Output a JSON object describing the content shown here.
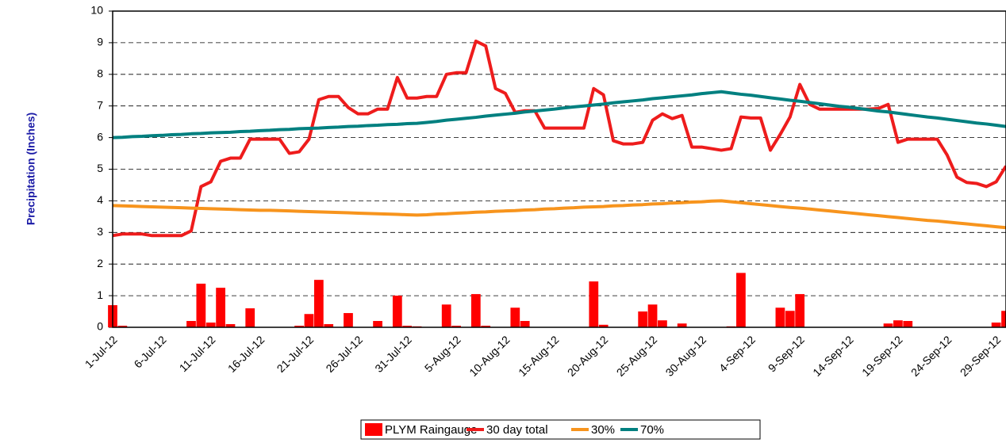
{
  "chart_data": {
    "type": "bar",
    "y_label": "Precipitation (Inches)",
    "categories": [
      "1-Jul-12",
      null,
      null,
      null,
      null,
      "6-Jul-12",
      null,
      null,
      null,
      null,
      "11-Jul-12",
      null,
      null,
      null,
      null,
      "16-Jul-12",
      null,
      null,
      null,
      null,
      "21-Jul-12",
      null,
      null,
      null,
      null,
      "26-Jul-12",
      null,
      null,
      null,
      null,
      "31-Jul-12",
      null,
      null,
      null,
      null,
      "5-Aug-12",
      null,
      null,
      null,
      null,
      "10-Aug-12",
      null,
      null,
      null,
      null,
      "15-Aug-12",
      null,
      null,
      null,
      null,
      "20-Aug-12",
      null,
      null,
      null,
      null,
      "25-Aug-12",
      null,
      null,
      null,
      null,
      "30-Aug-12",
      null,
      null,
      null,
      null,
      "4-Sep-12",
      null,
      null,
      null,
      null,
      "9-Sep-12",
      null,
      null,
      null,
      null,
      "14-Sep-12",
      null,
      null,
      null,
      null,
      "19-Sep-12",
      null,
      null,
      null,
      null,
      "24-Sep-12",
      null,
      null,
      null,
      null,
      "29-Sep-12",
      null
    ],
    "series": [
      {
        "name": "PLYM Raingauge",
        "type": "bar",
        "color": "#ff0000",
        "values": [
          0.7,
          0.05,
          0,
          0,
          0,
          0,
          0,
          0,
          0.2,
          1.38,
          0.15,
          1.25,
          0.1,
          0,
          0.6,
          0,
          0,
          0,
          0,
          0.05,
          0.42,
          1.5,
          0.1,
          0,
          0.45,
          0,
          0,
          0.2,
          0,
          1.0,
          0.05,
          0.03,
          0,
          0,
          0.72,
          0.05,
          0,
          1.05,
          0.05,
          0,
          0,
          0.62,
          0.2,
          0,
          0,
          0,
          0,
          0,
          0,
          1.45,
          0.08,
          0,
          0,
          0,
          0.5,
          0.72,
          0.22,
          0,
          0.12,
          0,
          0,
          0,
          0,
          0.03,
          1.72,
          0,
          0,
          0,
          0.62,
          0.52,
          1.05,
          0,
          0,
          0,
          0,
          0,
          0,
          0,
          0,
          0.12,
          0.22,
          0.2,
          0,
          0,
          0,
          0,
          0,
          0,
          0,
          0,
          0.15,
          0.52
        ]
      },
      {
        "name": "30 day total",
        "type": "line",
        "color": "#ee1c1c",
        "values": [
          2.9,
          2.95,
          2.95,
          2.95,
          2.9,
          2.9,
          2.9,
          2.9,
          3.05,
          4.45,
          4.6,
          5.25,
          5.35,
          5.35,
          5.95,
          5.95,
          5.95,
          5.95,
          5.5,
          5.55,
          5.95,
          7.2,
          7.3,
          7.3,
          6.95,
          6.75,
          6.75,
          6.9,
          6.9,
          7.9,
          7.25,
          7.25,
          7.3,
          7.3,
          8.0,
          8.05,
          8.05,
          9.05,
          8.9,
          7.55,
          7.4,
          6.8,
          6.85,
          6.85,
          6.3,
          6.3,
          6.3,
          6.3,
          6.3,
          7.55,
          7.35,
          5.9,
          5.8,
          5.8,
          5.85,
          6.55,
          6.75,
          6.6,
          6.7,
          5.7,
          5.7,
          5.65,
          5.6,
          5.65,
          6.65,
          6.62,
          6.62,
          5.6,
          6.1,
          6.65,
          7.68,
          7.05,
          6.9,
          6.9,
          6.9,
          6.9,
          6.9,
          6.9,
          6.92,
          7.05,
          5.85,
          5.95,
          5.95,
          5.95,
          5.95,
          5.45,
          4.75,
          4.58,
          4.55,
          4.45,
          4.6,
          5.1
        ]
      },
      {
        "name": "30%",
        "type": "line",
        "color": "#f7941d",
        "values": [
          3.85,
          3.84,
          3.83,
          3.82,
          3.81,
          3.8,
          3.79,
          3.78,
          3.77,
          3.76,
          3.75,
          3.74,
          3.73,
          3.72,
          3.71,
          3.7,
          3.7,
          3.69,
          3.68,
          3.67,
          3.66,
          3.65,
          3.64,
          3.63,
          3.62,
          3.61,
          3.6,
          3.59,
          3.58,
          3.57,
          3.56,
          3.55,
          3.56,
          3.58,
          3.59,
          3.61,
          3.62,
          3.64,
          3.65,
          3.67,
          3.68,
          3.69,
          3.71,
          3.72,
          3.74,
          3.75,
          3.77,
          3.78,
          3.8,
          3.81,
          3.82,
          3.84,
          3.85,
          3.87,
          3.88,
          3.9,
          3.91,
          3.93,
          3.94,
          3.96,
          3.97,
          3.99,
          4.0,
          3.97,
          3.94,
          3.91,
          3.88,
          3.85,
          3.82,
          3.79,
          3.77,
          3.74,
          3.71,
          3.68,
          3.65,
          3.62,
          3.59,
          3.56,
          3.53,
          3.5,
          3.47,
          3.44,
          3.41,
          3.38,
          3.36,
          3.33,
          3.3,
          3.27,
          3.24,
          3.21,
          3.18,
          3.15
        ]
      },
      {
        "name": "70%",
        "type": "line",
        "color": "#008080",
        "values": [
          6.0,
          6.01,
          6.03,
          6.04,
          6.06,
          6.07,
          6.09,
          6.1,
          6.12,
          6.13,
          6.15,
          6.16,
          6.17,
          6.19,
          6.2,
          6.22,
          6.23,
          6.25,
          6.26,
          6.28,
          6.29,
          6.3,
          6.32,
          6.33,
          6.35,
          6.36,
          6.38,
          6.39,
          6.41,
          6.42,
          6.44,
          6.45,
          6.48,
          6.51,
          6.55,
          6.58,
          6.61,
          6.64,
          6.68,
          6.71,
          6.74,
          6.77,
          6.81,
          6.84,
          6.87,
          6.9,
          6.94,
          6.97,
          7.0,
          7.03,
          7.06,
          7.1,
          7.13,
          7.16,
          7.19,
          7.23,
          7.26,
          7.29,
          7.32,
          7.35,
          7.39,
          7.42,
          7.45,
          7.41,
          7.37,
          7.34,
          7.3,
          7.26,
          7.22,
          7.18,
          7.15,
          7.11,
          7.07,
          7.03,
          6.99,
          6.96,
          6.92,
          6.88,
          6.84,
          6.81,
          6.77,
          6.73,
          6.69,
          6.65,
          6.62,
          6.58,
          6.54,
          6.5,
          6.46,
          6.43,
          6.39,
          6.35
        ]
      }
    ],
    "ylim": [
      0,
      10
    ],
    "yticks": [
      0,
      1,
      2,
      3,
      4,
      5,
      6,
      7,
      8,
      9,
      10
    ],
    "grid": true,
    "legend": "bottom"
  }
}
